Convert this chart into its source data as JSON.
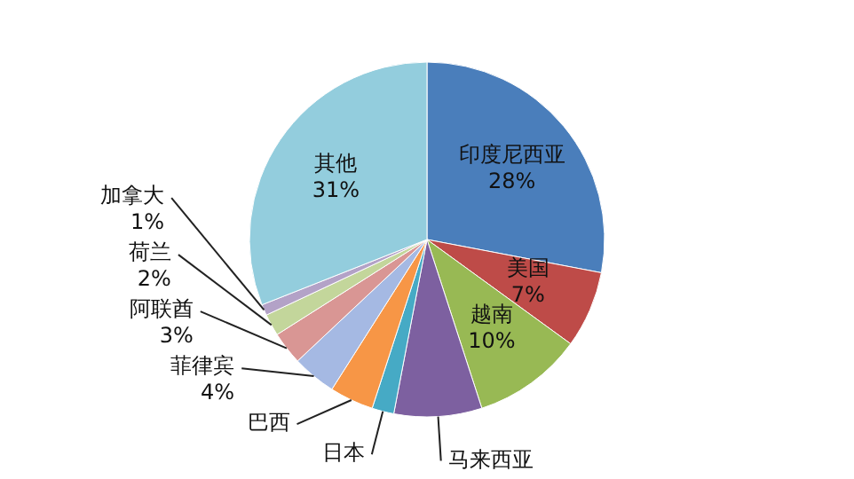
{
  "chart_data": {
    "type": "pie",
    "categories": [
      "印度尼西亚",
      "美国",
      "越南",
      "马来西亚",
      "日本",
      "巴西",
      "菲律宾",
      "阿联酋",
      "荷兰",
      "加拿大",
      "其他"
    ],
    "values": [
      28,
      7,
      10,
      8,
      2,
      4,
      4,
      3,
      2,
      1,
      31
    ],
    "value_labels": [
      "28%",
      "7%",
      "10%",
      null,
      null,
      null,
      "4%",
      "3%",
      "2%",
      "1%",
      "31%"
    ],
    "colors": [
      "#4a7ebb",
      "#be4b48",
      "#98b954",
      "#7d60a0",
      "#46aac5",
      "#f79646",
      "#a5b9e3",
      "#d99694",
      "#c3d69b",
      "#b3a2c7",
      "#93cddd"
    ]
  }
}
